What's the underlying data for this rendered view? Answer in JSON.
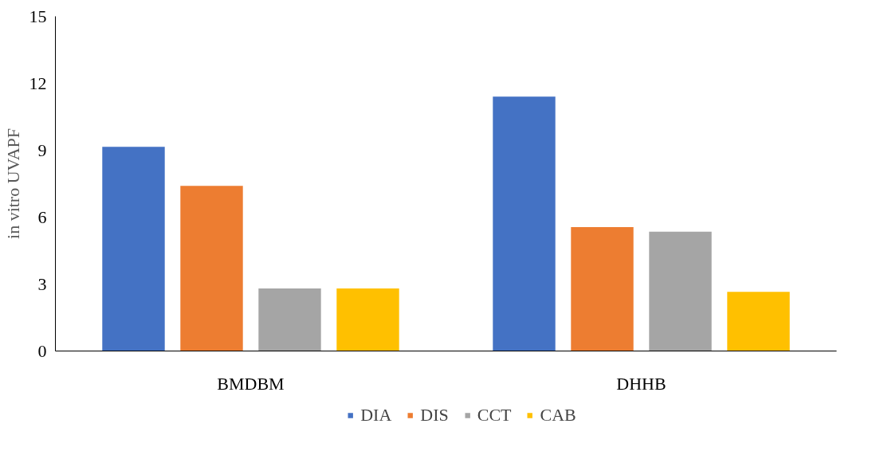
{
  "chart_data": {
    "type": "bar",
    "ylabel": "in vitro UVAPF",
    "categories": [
      "BMDBM",
      "DHHB"
    ],
    "series": [
      {
        "name": "DIA",
        "color": "#4472c4",
        "values": [
          9.15,
          11.4
        ]
      },
      {
        "name": "DIS",
        "color": "#ed7d31",
        "values": [
          7.4,
          5.55
        ]
      },
      {
        "name": "CCT",
        "color": "#a5a5a5",
        "values": [
          2.8,
          5.35
        ]
      },
      {
        "name": "CAB",
        "color": "#ffc000",
        "values": [
          2.8,
          2.65
        ]
      }
    ],
    "ylim": [
      0,
      15
    ],
    "yticks": [
      0,
      3,
      6,
      9,
      12,
      15
    ],
    "grid": false,
    "legend": "bottom"
  }
}
